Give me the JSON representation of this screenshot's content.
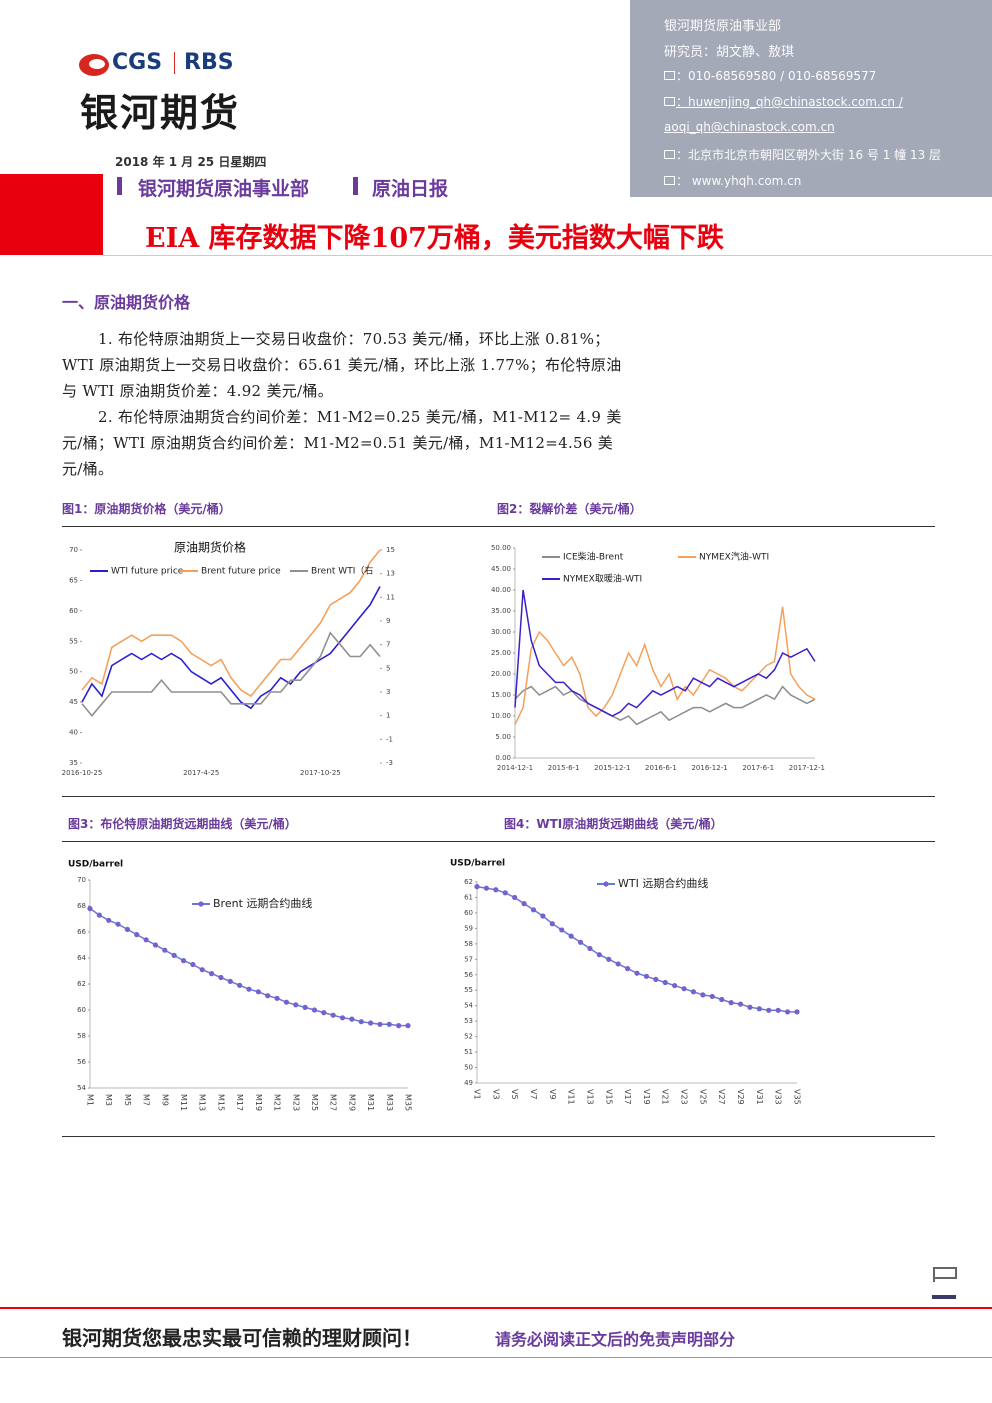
{
  "logo": {
    "left": "CGS",
    "right": "RBS",
    "name": "银河期货"
  },
  "contact": {
    "dept": "银河期货原油事业部",
    "analysts": "研究员：胡文静、敖琪",
    "phone": "：010-68569580 / 010-68569577",
    "email1": "：huwenjing_qh@chinastock.com.cn /",
    "email2": "aoqi_qh@chinastock.com.cn",
    "address": "：北京市北京市朝阳区朝外大街 16 号 1 幢 13 层",
    "web": "：  www.yhqh.com.cn"
  },
  "header": {
    "date": "2018 年 1 月 25 日星期四",
    "dept": "银河期货原油事业部",
    "report": "原油日报",
    "title": "EIA 库存数据下降107万桶，美元指数大幅下跌"
  },
  "section": {
    "heading": "一、原油期货价格",
    "paragraphs": [
      "1. 布伦特原油期货上一交易日收盘价：70.53 美元/桶，环比上涨 0.81%；WTI 原油期货上一交易日收盘价：65.61 美元/桶，环比上涨 1.77%；布伦特原油与 WTI 原油期货价差：4.92 美元/桶。",
      "2. 布伦特原油期货合约间价差：M1-M2=0.25 美元/桶，M1-M12= 4.9 美元/桶；WTI 原油期货合约间价差：M1-M2=0.51 美元/桶，M1-M12=4.56 美元/桶。"
    ]
  },
  "captions": [
    "图1：原油期货价格（美元/桶）",
    "图2：裂解价差（美元/桶）",
    "图3：布伦特原油期货远期曲线（美元/桶）",
    "图4：WTI原油期货远期曲线（美元/桶）"
  ],
  "chart_data": [
    {
      "type": "line",
      "title": "原油期货价格",
      "categories": [
        "2016-10-25",
        null,
        null,
        null,
        null,
        null,
        null,
        null,
        null,
        null,
        null,
        null,
        "2017-4-25",
        null,
        null,
        null,
        null,
        null,
        null,
        null,
        null,
        null,
        null,
        null,
        "2017-10-25",
        null,
        null,
        null,
        null,
        null,
        null
      ],
      "series": [
        {
          "name": "WTI future price",
          "color": "#2a1fd0",
          "values": [
            45,
            48,
            46,
            51,
            52,
            53,
            52,
            53,
            52,
            53,
            52,
            50,
            49,
            48,
            49,
            47,
            45,
            44,
            46,
            47,
            49,
            48,
            50,
            51,
            52,
            53,
            55,
            57,
            59,
            61,
            64
          ]
        },
        {
          "name": "Brent future price",
          "color": "#f5a05a",
          "values": [
            47,
            49,
            48,
            54,
            55,
            56,
            55,
            56,
            56,
            56,
            55,
            53,
            52,
            51,
            52,
            49,
            47,
            46,
            48,
            50,
            52,
            52,
            54,
            56,
            58,
            61,
            62,
            63,
            65,
            68,
            70
          ]
        },
        {
          "name": "Brent WTI（右",
          "color": "#909090",
          "axis": "y2",
          "values": [
            2,
            1,
            2,
            3,
            3,
            3,
            3,
            3,
            4,
            3,
            3,
            3,
            3,
            3,
            3,
            2,
            2,
            2,
            2,
            3,
            3,
            4,
            4,
            5,
            6,
            8,
            7,
            6,
            6,
            7,
            6
          ]
        }
      ],
      "ylim": [
        35,
        70
      ],
      "yticks": [
        35,
        40,
        45,
        50,
        55,
        60,
        65,
        70
      ],
      "y2lim": [
        -3,
        15
      ],
      "y2ticks": [
        -3,
        -1,
        1,
        3,
        5,
        7,
        9,
        11,
        13,
        15
      ]
    },
    {
      "type": "line",
      "categories": [
        "2014-12-1",
        null,
        null,
        null,
        null,
        null,
        "2015-6-1",
        null,
        null,
        null,
        null,
        null,
        "2015-12-1",
        null,
        null,
        null,
        null,
        null,
        "2016-6-1",
        null,
        null,
        null,
        null,
        null,
        "2016-12-1",
        null,
        null,
        null,
        null,
        null,
        "2017-6-1",
        null,
        null,
        null,
        null,
        null,
        "2017-12-1",
        null
      ],
      "series": [
        {
          "name": "ICE柴油-Brent",
          "color": "#8c8c8c",
          "values": [
            14,
            16,
            17,
            15,
            16,
            17,
            15,
            16,
            14,
            13,
            12,
            11,
            10,
            9,
            10,
            8,
            9,
            10,
            11,
            9,
            10,
            11,
            12,
            12,
            11,
            12,
            13,
            12,
            12,
            13,
            14,
            15,
            14,
            17,
            15,
            14,
            13,
            14
          ]
        },
        {
          "name": "NYMEX汽油-WTI",
          "color": "#f5a05a",
          "values": [
            8,
            12,
            26,
            30,
            28,
            25,
            22,
            24,
            20,
            12,
            10,
            12,
            15,
            20,
            25,
            22,
            27,
            21,
            17,
            20,
            14,
            17,
            15,
            18,
            21,
            20,
            19,
            17,
            16,
            18,
            20,
            22,
            23,
            36,
            20,
            17,
            15,
            14
          ]
        },
        {
          "name": "NYMEX取暖油-WTI",
          "color": "#3a1fd0",
          "values": [
            12,
            40,
            28,
            22,
            20,
            18,
            18,
            16,
            15,
            13,
            12,
            11,
            10,
            11,
            13,
            12,
            14,
            16,
            15,
            16,
            17,
            16,
            19,
            18,
            17,
            19,
            18,
            17,
            18,
            19,
            20,
            19,
            21,
            25,
            24,
            25,
            26,
            23
          ]
        }
      ],
      "ylim": [
        0,
        50
      ],
      "yticks": [
        {
          "value": 0,
          "label": "0.00"
        },
        {
          "value": 5,
          "label": "5.00"
        },
        {
          "value": 10,
          "label": "10.00"
        },
        {
          "value": 15,
          "label": "15.00"
        },
        {
          "value": 20,
          "label": "20.00"
        },
        {
          "value": 25,
          "label": "25.00"
        },
        {
          "value": 30,
          "label": "30.00"
        },
        {
          "value": 35,
          "label": "35.00"
        },
        {
          "value": 40,
          "label": "40.00"
        },
        {
          "value": 45,
          "label": "45.00"
        },
        {
          "value": 50,
          "label": "50.00"
        }
      ]
    },
    {
      "type": "line",
      "ylabel": "USD/barrel",
      "markers": true,
      "categories": [
        "M1",
        null,
        "M3",
        null,
        "M5",
        null,
        "M7",
        null,
        "M9",
        null,
        "M11",
        null,
        "M13",
        null,
        "M15",
        null,
        "M17",
        null,
        "M19",
        null,
        "M21",
        null,
        "M23",
        null,
        "M25",
        null,
        "M27",
        null,
        "M29",
        null,
        "M31",
        null,
        "M33",
        null,
        "M35"
      ],
      "series": [
        {
          "name": "Brent 远期合约曲线",
          "color": "#5b7fd4",
          "values": [
            67.8,
            67.3,
            66.9,
            66.6,
            66.2,
            65.8,
            65.4,
            65.0,
            64.6,
            64.2,
            63.8,
            63.5,
            63.1,
            62.8,
            62.5,
            62.2,
            61.9,
            61.6,
            61.4,
            61.1,
            60.9,
            60.6,
            60.4,
            60.2,
            60.0,
            59.8,
            59.6,
            59.4,
            59.3,
            59.1,
            59.0,
            58.9,
            58.9,
            58.8,
            58.8
          ]
        }
      ],
      "ylim": [
        54,
        70
      ],
      "yticks": [
        54,
        56,
        58,
        60,
        62,
        64,
        66,
        68,
        70
      ]
    },
    {
      "type": "line",
      "ylabel": "USD/barrel",
      "markers": true,
      "categories": [
        "V1",
        null,
        "V3",
        null,
        "V5",
        null,
        "V7",
        null,
        "V9",
        null,
        "V11",
        null,
        "V13",
        null,
        "V15",
        null,
        "V17",
        null,
        "V19",
        null,
        "V21",
        null,
        "V23",
        null,
        "V25",
        null,
        "V27",
        null,
        "V29",
        null,
        "V31",
        null,
        "V33",
        null,
        "V35"
      ],
      "series": [
        {
          "name": "WTI 远期合约曲线",
          "color": "#5b7fd4",
          "values": [
            61.7,
            61.6,
            61.5,
            61.3,
            61.0,
            60.6,
            60.2,
            59.8,
            59.3,
            58.9,
            58.5,
            58.1,
            57.7,
            57.3,
            57.0,
            56.7,
            56.4,
            56.1,
            55.9,
            55.7,
            55.5,
            55.3,
            55.1,
            54.9,
            54.7,
            54.6,
            54.4,
            54.2,
            54.1,
            53.9,
            53.8,
            53.7,
            53.7,
            53.6,
            53.6
          ]
        }
      ],
      "ylim": [
        49,
        62
      ],
      "yticks": [
        49,
        50,
        51,
        52,
        53,
        54,
        55,
        56,
        57,
        58,
        59,
        60,
        61,
        62
      ]
    }
  ],
  "footer": {
    "slogan": "银河期货您最忠实最可信赖的理财顾问！",
    "notice": "请务必阅读正文后的免责声明部分"
  }
}
